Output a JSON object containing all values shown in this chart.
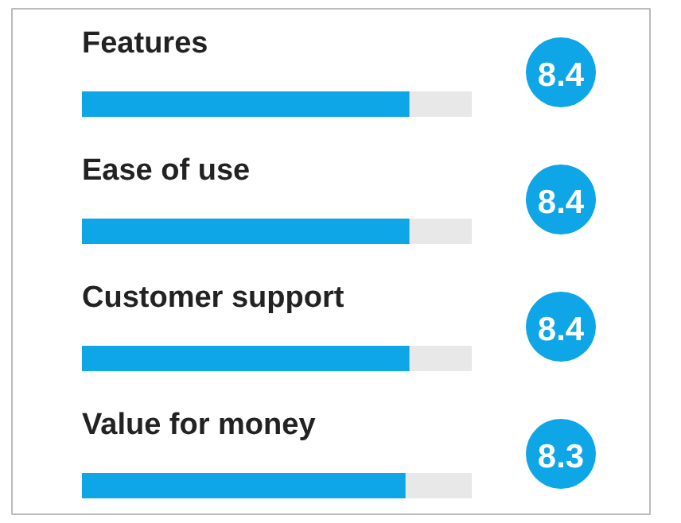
{
  "chart_data": {
    "type": "bar",
    "orientation": "horizontal",
    "categories": [
      "Features",
      "Ease of use",
      "Customer support",
      "Value for money"
    ],
    "values": [
      8.4,
      8.4,
      8.4,
      8.3
    ],
    "color": "#0ea6e6",
    "xlim": [
      0,
      10
    ],
    "data_labels": true,
    "tick_labels": false
  }
}
